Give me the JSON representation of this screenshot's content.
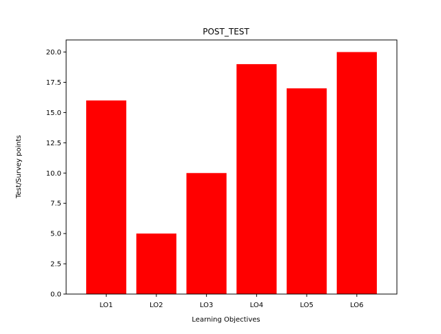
{
  "chart_data": {
    "type": "bar",
    "title": "POST_TEST",
    "xlabel": "Learning Objectives",
    "ylabel": "Test/Survey points",
    "categories": [
      "LO1",
      "LO2",
      "LO3",
      "LO4",
      "LO5",
      "LO6"
    ],
    "values": [
      16,
      5,
      10,
      19,
      17,
      20
    ],
    "ylim": [
      0,
      21
    ],
    "yticks": [
      "0.0",
      "2.5",
      "5.0",
      "7.5",
      "10.0",
      "12.5",
      "15.0",
      "17.5",
      "20.0"
    ],
    "bar_color": "#ff0000",
    "grid": false
  }
}
